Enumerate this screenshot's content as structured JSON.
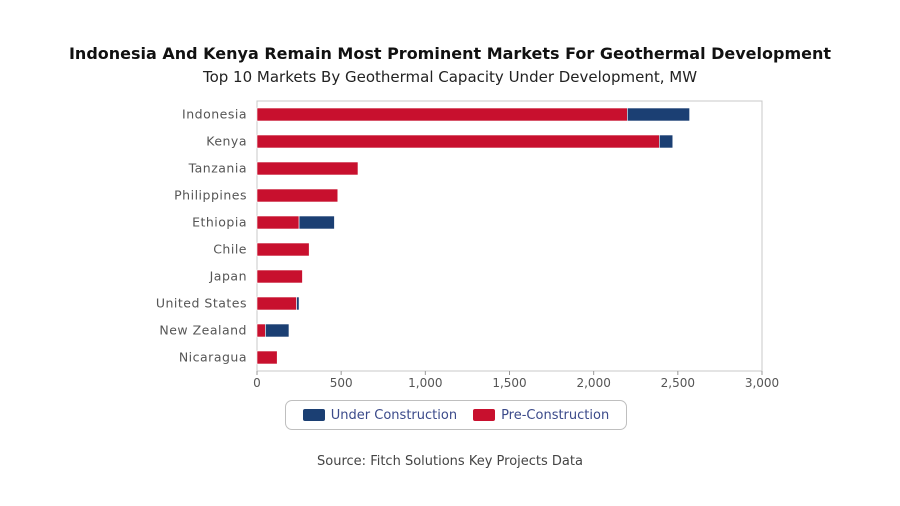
{
  "chart_data": {
    "type": "bar",
    "orientation": "horizontal",
    "stacked": true,
    "title": "Indonesia And Kenya Remain Most Prominent Markets For Geothermal Development",
    "subtitle": "Top 10 Markets By Geothermal Capacity Under Development, MW",
    "categories": [
      "Indonesia",
      "Kenya",
      "Tanzania",
      "Philippines",
      "Ethiopia",
      "Chile",
      "Japan",
      "United States",
      "New Zealand",
      "Nicaragua"
    ],
    "series": [
      {
        "name": "Pre-Construction",
        "color": "#c8102e",
        "values": [
          2200,
          2390,
          600,
          480,
          250,
          310,
          270,
          235,
          50,
          120
        ]
      },
      {
        "name": "Under Construction",
        "color": "#1b3f73",
        "values": [
          370,
          80,
          0,
          0,
          210,
          0,
          0,
          15,
          140,
          0
        ]
      }
    ],
    "xlim": [
      0,
      3000
    ],
    "xticks": [
      "0",
      "500",
      "1,000",
      "1,500",
      "2,000",
      "2,500",
      "3,000"
    ],
    "legend_position": "bottom",
    "source": "Source: Fitch Solutions Key Projects Data"
  }
}
